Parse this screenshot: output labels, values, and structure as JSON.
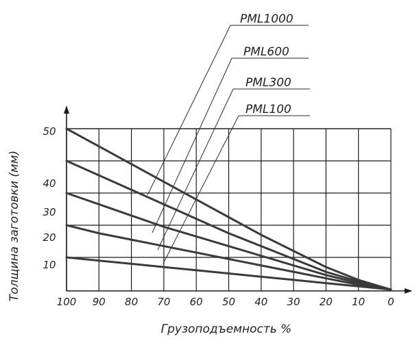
{
  "chart_data": {
    "type": "line",
    "title": "",
    "xlabel": "Грузоподъемность %",
    "ylabel": "Толщина заготовки (мм)",
    "xlim": [
      100,
      0
    ],
    "ylim": [
      0,
      50
    ],
    "x_ticks": [
      "100",
      "90",
      "80",
      "70",
      "60",
      "50",
      "40",
      "30",
      "20",
      "10",
      "0"
    ],
    "y_ticks": [
      "10",
      "20",
      "30",
      "40",
      "50"
    ],
    "grid": true,
    "series": [
      {
        "name": "PML1000",
        "x": [
          100,
          90,
          80,
          70,
          60,
          50,
          40,
          30,
          20,
          10,
          0
        ],
        "y": [
          50,
          44.5,
          39,
          33.5,
          28,
          22.5,
          17,
          12,
          7,
          3,
          0
        ]
      },
      {
        "name": "PML600",
        "x": [
          100,
          90,
          80,
          70,
          60,
          50,
          40,
          30,
          20,
          10,
          0
        ],
        "y": [
          40,
          35.5,
          31,
          26.5,
          22,
          17.5,
          13.5,
          9.5,
          5.5,
          2.5,
          0
        ]
      },
      {
        "name": "PML300",
        "x": [
          100,
          90,
          80,
          70,
          60,
          50,
          40,
          30,
          20,
          10,
          0
        ],
        "y": [
          30,
          26.5,
          23,
          19.5,
          16.5,
          13.5,
          10.5,
          7.5,
          4.5,
          2,
          0
        ]
      },
      {
        "name": "PML100",
        "x": [
          100,
          90,
          80,
          70,
          60,
          50,
          40,
          30,
          20,
          10,
          0
        ],
        "y": [
          20,
          17.5,
          15.5,
          13.5,
          11.5,
          9.5,
          7.5,
          5.5,
          3.5,
          1.5,
          0
        ]
      },
      {
        "name": "",
        "x": [
          100,
          90,
          80,
          70,
          60,
          50,
          40,
          30,
          20,
          10,
          0
        ],
        "y": [
          10,
          9,
          8,
          7,
          6,
          5,
          4,
          3,
          2,
          1,
          0
        ]
      }
    ]
  }
}
